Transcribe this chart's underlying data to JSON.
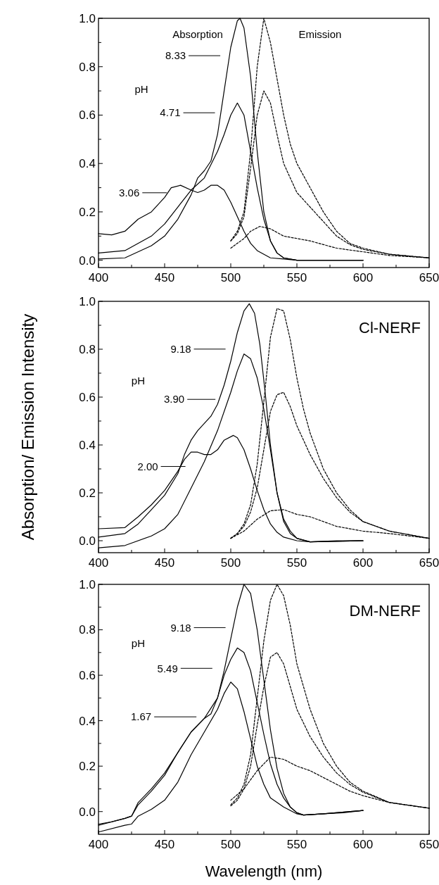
{
  "chart_data": [
    {
      "type": "line",
      "xlim": [
        400,
        650
      ],
      "ylim": [
        -0.03,
        1.0
      ],
      "xticks": [
        400,
        {
          "value": 425,
          "label": null
        },
        450,
        {
          "value": 475,
          "label": null
        },
        500,
        {
          "value": 525,
          "label": null
        },
        550,
        {
          "value": 575,
          "label": null
        },
        600,
        {
          "value": 625,
          "label": null
        },
        650
      ],
      "yticks": [
        {
          "value": 0,
          "label": "0.0"
        },
        {
          "value": 0.1,
          "label": null
        },
        {
          "value": 0.2,
          "label": "0.2"
        },
        {
          "value": 0.3,
          "label": null
        },
        {
          "value": 0.4,
          "label": "0.4"
        },
        {
          "value": 0.5,
          "label": null
        },
        {
          "value": 0.6,
          "label": "0.6"
        },
        {
          "value": 0.7,
          "label": null
        },
        {
          "value": 0.8,
          "label": "0.8"
        },
        {
          "value": 0.9,
          "label": null
        },
        {
          "value": 1.0,
          "label": "1.0"
        }
      ],
      "annotations": [
        "Absorption",
        "Emission",
        "pH",
        "8.33",
        "4.71",
        "3.06"
      ],
      "series": [
        {
          "color": "#000000",
          "line_style": "solid",
          "x": [
            400,
            420,
            440,
            450,
            460,
            470,
            475,
            480,
            485,
            490,
            495,
            500,
            505,
            507,
            510,
            515,
            520,
            525,
            530,
            535,
            540,
            550,
            600
          ],
          "values": [
            0.005,
            0.01,
            0.06,
            0.1,
            0.17,
            0.27,
            0.34,
            0.37,
            0.41,
            0.52,
            0.7,
            0.88,
            0.99,
            1.0,
            0.96,
            0.76,
            0.45,
            0.2,
            0.08,
            0.03,
            0.01,
            0.0,
            0.0
          ]
        },
        {
          "color": "#000000",
          "line_style": "solid",
          "x": [
            400,
            420,
            440,
            450,
            460,
            470,
            480,
            490,
            495,
            500,
            505,
            510,
            515,
            520,
            525,
            530,
            535,
            540,
            550,
            600
          ],
          "values": [
            0.03,
            0.04,
            0.1,
            0.15,
            0.22,
            0.29,
            0.34,
            0.45,
            0.52,
            0.6,
            0.65,
            0.6,
            0.45,
            0.3,
            0.17,
            0.08,
            0.03,
            0.01,
            0.0,
            0.0
          ]
        },
        {
          "color": "#000000",
          "line_style": "solid",
          "x": [
            400,
            410,
            420,
            430,
            440,
            450,
            455,
            462,
            470,
            475,
            480,
            485,
            490,
            495,
            500,
            505,
            510,
            515,
            520,
            530,
            540,
            550,
            600
          ],
          "values": [
            0.11,
            0.105,
            0.12,
            0.17,
            0.2,
            0.26,
            0.3,
            0.31,
            0.29,
            0.28,
            0.29,
            0.31,
            0.31,
            0.29,
            0.24,
            0.18,
            0.12,
            0.07,
            0.04,
            0.01,
            0.005,
            0.0,
            0.0
          ]
        },
        {
          "color": "#000000",
          "line_style": "dashed",
          "x": [
            500,
            505,
            510,
            515,
            520,
            525,
            530,
            535,
            540,
            545,
            550,
            560,
            570,
            580,
            590,
            600,
            620,
            650
          ],
          "values": [
            0.08,
            0.12,
            0.2,
            0.45,
            0.8,
            1.0,
            0.9,
            0.75,
            0.6,
            0.48,
            0.4,
            0.3,
            0.2,
            0.12,
            0.07,
            0.05,
            0.025,
            0.01
          ]
        },
        {
          "color": "#000000",
          "line_style": "dashed",
          "x": [
            500,
            505,
            510,
            515,
            520,
            525,
            530,
            535,
            540,
            550,
            560,
            570,
            580,
            590,
            600,
            620,
            650
          ],
          "values": [
            0.08,
            0.11,
            0.18,
            0.38,
            0.6,
            0.7,
            0.65,
            0.52,
            0.4,
            0.28,
            0.22,
            0.16,
            0.1,
            0.065,
            0.045,
            0.025,
            0.01
          ]
        },
        {
          "color": "#000000",
          "line_style": "dashed",
          "x": [
            500,
            510,
            515,
            522,
            530,
            540,
            550,
            560,
            570,
            580,
            600,
            620,
            650
          ],
          "values": [
            0.05,
            0.09,
            0.12,
            0.14,
            0.13,
            0.1,
            0.09,
            0.08,
            0.065,
            0.05,
            0.035,
            0.02,
            0.01
          ]
        }
      ]
    },
    {
      "type": "line",
      "title": "Cl-NERF",
      "ylabel": "Absorption/ Emission Intensity",
      "xlim": [
        400,
        650
      ],
      "ylim": [
        -0.05,
        1.0
      ],
      "xticks": [
        400,
        {
          "value": 425,
          "label": null
        },
        450,
        {
          "value": 475,
          "label": null
        },
        500,
        {
          "value": 525,
          "label": null
        },
        550,
        {
          "value": 575,
          "label": null
        },
        600,
        {
          "value": 625,
          "label": null
        },
        650
      ],
      "yticks": [
        {
          "value": 0,
          "label": "0.0"
        },
        {
          "value": 0.1,
          "label": null
        },
        {
          "value": 0.2,
          "label": "0.2"
        },
        {
          "value": 0.3,
          "label": null
        },
        {
          "value": 0.4,
          "label": "0.4"
        },
        {
          "value": 0.5,
          "label": null
        },
        {
          "value": 0.6,
          "label": "0.6"
        },
        {
          "value": 0.7,
          "label": null
        },
        {
          "value": 0.8,
          "label": "0.8"
        },
        {
          "value": 0.9,
          "label": null
        },
        {
          "value": 1.0,
          "label": "1.0"
        }
      ],
      "annotations": [
        "pH",
        "9.18",
        "3.90",
        "2.00"
      ],
      "series": [
        {
          "color": "#000000",
          "line_style": "solid",
          "x": [
            400,
            420,
            430,
            440,
            450,
            460,
            465,
            470,
            475,
            480,
            485,
            490,
            495,
            500,
            505,
            510,
            514,
            518,
            522,
            526,
            530,
            535,
            540,
            545,
            550,
            560,
            580,
            600
          ],
          "values": [
            0.015,
            0.03,
            0.07,
            0.13,
            0.19,
            0.28,
            0.36,
            0.42,
            0.46,
            0.49,
            0.52,
            0.57,
            0.65,
            0.75,
            0.87,
            0.96,
            0.99,
            0.95,
            0.82,
            0.62,
            0.4,
            0.2,
            0.08,
            0.03,
            0.01,
            -0.005,
            0.0,
            0.0
          ]
        },
        {
          "color": "#000000",
          "line_style": "solid",
          "x": [
            400,
            420,
            440,
            450,
            460,
            470,
            480,
            490,
            500,
            505,
            510,
            515,
            520,
            525,
            530,
            535,
            540,
            545,
            550,
            560,
            600
          ],
          "values": [
            -0.03,
            -0.02,
            0.02,
            0.05,
            0.11,
            0.22,
            0.33,
            0.46,
            0.62,
            0.71,
            0.78,
            0.76,
            0.68,
            0.55,
            0.38,
            0.2,
            0.09,
            0.04,
            0.01,
            -0.005,
            0.0
          ]
        },
        {
          "color": "#000000",
          "line_style": "solid",
          "x": [
            400,
            420,
            430,
            440,
            450,
            460,
            465,
            470,
            475,
            480,
            485,
            490,
            495,
            502,
            505,
            510,
            515,
            520,
            525,
            530,
            535,
            540,
            550,
            560,
            600
          ],
          "values": [
            0.05,
            0.055,
            0.1,
            0.15,
            0.21,
            0.29,
            0.34,
            0.37,
            0.37,
            0.36,
            0.36,
            0.38,
            0.42,
            0.44,
            0.43,
            0.38,
            0.3,
            0.21,
            0.13,
            0.07,
            0.035,
            0.015,
            0.0,
            -0.005,
            0.0
          ]
        },
        {
          "color": "#000000",
          "line_style": "dashed",
          "x": [
            500,
            505,
            510,
            515,
            520,
            525,
            530,
            535,
            540,
            545,
            550,
            555,
            560,
            570,
            580,
            590,
            600,
            620,
            650
          ],
          "values": [
            0.01,
            0.03,
            0.07,
            0.15,
            0.32,
            0.58,
            0.85,
            0.97,
            0.96,
            0.84,
            0.68,
            0.55,
            0.45,
            0.3,
            0.2,
            0.13,
            0.08,
            0.04,
            0.01
          ]
        },
        {
          "color": "#000000",
          "line_style": "dashed",
          "x": [
            500,
            505,
            510,
            515,
            520,
            525,
            530,
            535,
            540,
            545,
            550,
            560,
            570,
            580,
            590,
            600,
            620,
            650
          ],
          "values": [
            0.01,
            0.03,
            0.06,
            0.12,
            0.22,
            0.38,
            0.54,
            0.61,
            0.62,
            0.56,
            0.48,
            0.36,
            0.26,
            0.18,
            0.12,
            0.08,
            0.04,
            0.01
          ]
        },
        {
          "color": "#000000",
          "line_style": "dashed",
          "x": [
            500,
            510,
            520,
            530,
            540,
            550,
            560,
            570,
            580,
            600,
            620,
            650
          ],
          "values": [
            0.01,
            0.04,
            0.09,
            0.125,
            0.13,
            0.11,
            0.1,
            0.08,
            0.06,
            0.04,
            0.03,
            0.01
          ]
        }
      ]
    },
    {
      "type": "line",
      "title": "DM-NERF",
      "xlabel": "Wavelength (nm)",
      "xlim": [
        400,
        650
      ],
      "ylim": [
        -0.1,
        1.0
      ],
      "xticks": [
        400,
        {
          "value": 425,
          "label": null
        },
        450,
        {
          "value": 475,
          "label": null
        },
        500,
        {
          "value": 525,
          "label": null
        },
        550,
        {
          "value": 575,
          "label": null
        },
        600,
        {
          "value": 625,
          "label": null
        },
        650
      ],
      "yticks": [
        {
          "value": 0,
          "label": "0.0"
        },
        {
          "value": 0.1,
          "label": null
        },
        {
          "value": 0.2,
          "label": "0.2"
        },
        {
          "value": 0.3,
          "label": null
        },
        {
          "value": 0.4,
          "label": "0.4"
        },
        {
          "value": 0.5,
          "label": null
        },
        {
          "value": 0.6,
          "label": "0.6"
        },
        {
          "value": 0.7,
          "label": null
        },
        {
          "value": 0.8,
          "label": "0.8"
        },
        {
          "value": 0.9,
          "label": null
        },
        {
          "value": 1.0,
          "label": "1.0"
        }
      ],
      "annotations": [
        "pH",
        "9.18",
        "5.49",
        "1.67"
      ],
      "series": [
        {
          "color": "#000000",
          "line_style": "solid",
          "x": [
            400,
            410,
            420,
            425,
            430,
            440,
            450,
            460,
            470,
            480,
            485,
            490,
            495,
            500,
            505,
            510,
            515,
            520,
            525,
            530,
            535,
            540,
            545,
            550,
            555,
            570,
            585,
            600
          ],
          "values": [
            -0.055,
            -0.045,
            -0.03,
            -0.02,
            0.04,
            0.1,
            0.17,
            0.26,
            0.35,
            0.41,
            0.43,
            0.5,
            0.62,
            0.76,
            0.9,
            1.0,
            0.96,
            0.8,
            0.58,
            0.36,
            0.19,
            0.08,
            0.02,
            -0.005,
            -0.015,
            -0.01,
            -0.005,
            0.005
          ]
        },
        {
          "color": "#000000",
          "line_style": "solid",
          "x": [
            400,
            420,
            425,
            430,
            440,
            450,
            460,
            470,
            480,
            490,
            495,
            500,
            505,
            510,
            515,
            520,
            525,
            530,
            535,
            540,
            545,
            550,
            555,
            570,
            600
          ],
          "values": [
            -0.06,
            -0.03,
            -0.02,
            0.03,
            0.09,
            0.16,
            0.26,
            0.35,
            0.41,
            0.5,
            0.6,
            0.67,
            0.72,
            0.7,
            0.62,
            0.48,
            0.34,
            0.21,
            0.12,
            0.06,
            0.02,
            -0.005,
            -0.015,
            -0.01,
            0.005
          ]
        },
        {
          "color": "#000000",
          "line_style": "solid",
          "x": [
            400,
            420,
            425,
            430,
            440,
            450,
            460,
            470,
            480,
            490,
            495,
            500,
            505,
            510,
            515,
            520,
            525,
            530,
            540,
            550,
            555,
            570,
            600
          ],
          "values": [
            -0.09,
            -0.06,
            -0.055,
            -0.02,
            0.01,
            0.05,
            0.13,
            0.25,
            0.35,
            0.45,
            0.52,
            0.57,
            0.54,
            0.44,
            0.32,
            0.2,
            0.12,
            0.06,
            0.02,
            -0.01,
            -0.015,
            -0.01,
            0.005
          ]
        },
        {
          "color": "#000000",
          "line_style": "dashed",
          "x": [
            500,
            505,
            510,
            515,
            520,
            525,
            530,
            535,
            540,
            545,
            550,
            560,
            570,
            580,
            590,
            600,
            620,
            650
          ],
          "values": [
            0.03,
            0.06,
            0.12,
            0.25,
            0.5,
            0.75,
            0.93,
            1.0,
            0.95,
            0.82,
            0.65,
            0.45,
            0.3,
            0.2,
            0.13,
            0.09,
            0.04,
            0.015
          ]
        },
        {
          "color": "#000000",
          "line_style": "dashed",
          "x": [
            500,
            505,
            510,
            515,
            520,
            525,
            530,
            535,
            540,
            545,
            550,
            560,
            570,
            580,
            590,
            600,
            620,
            650
          ],
          "values": [
            0.025,
            0.05,
            0.1,
            0.2,
            0.38,
            0.55,
            0.68,
            0.7,
            0.65,
            0.55,
            0.45,
            0.33,
            0.24,
            0.17,
            0.12,
            0.085,
            0.04,
            0.015
          ]
        },
        {
          "color": "#000000",
          "line_style": "dashed",
          "x": [
            500,
            510,
            520,
            530,
            540,
            550,
            560,
            570,
            580,
            590,
            600,
            620,
            650
          ],
          "values": [
            0.05,
            0.1,
            0.18,
            0.24,
            0.23,
            0.2,
            0.18,
            0.15,
            0.12,
            0.09,
            0.07,
            0.04,
            0.015
          ]
        }
      ]
    }
  ]
}
